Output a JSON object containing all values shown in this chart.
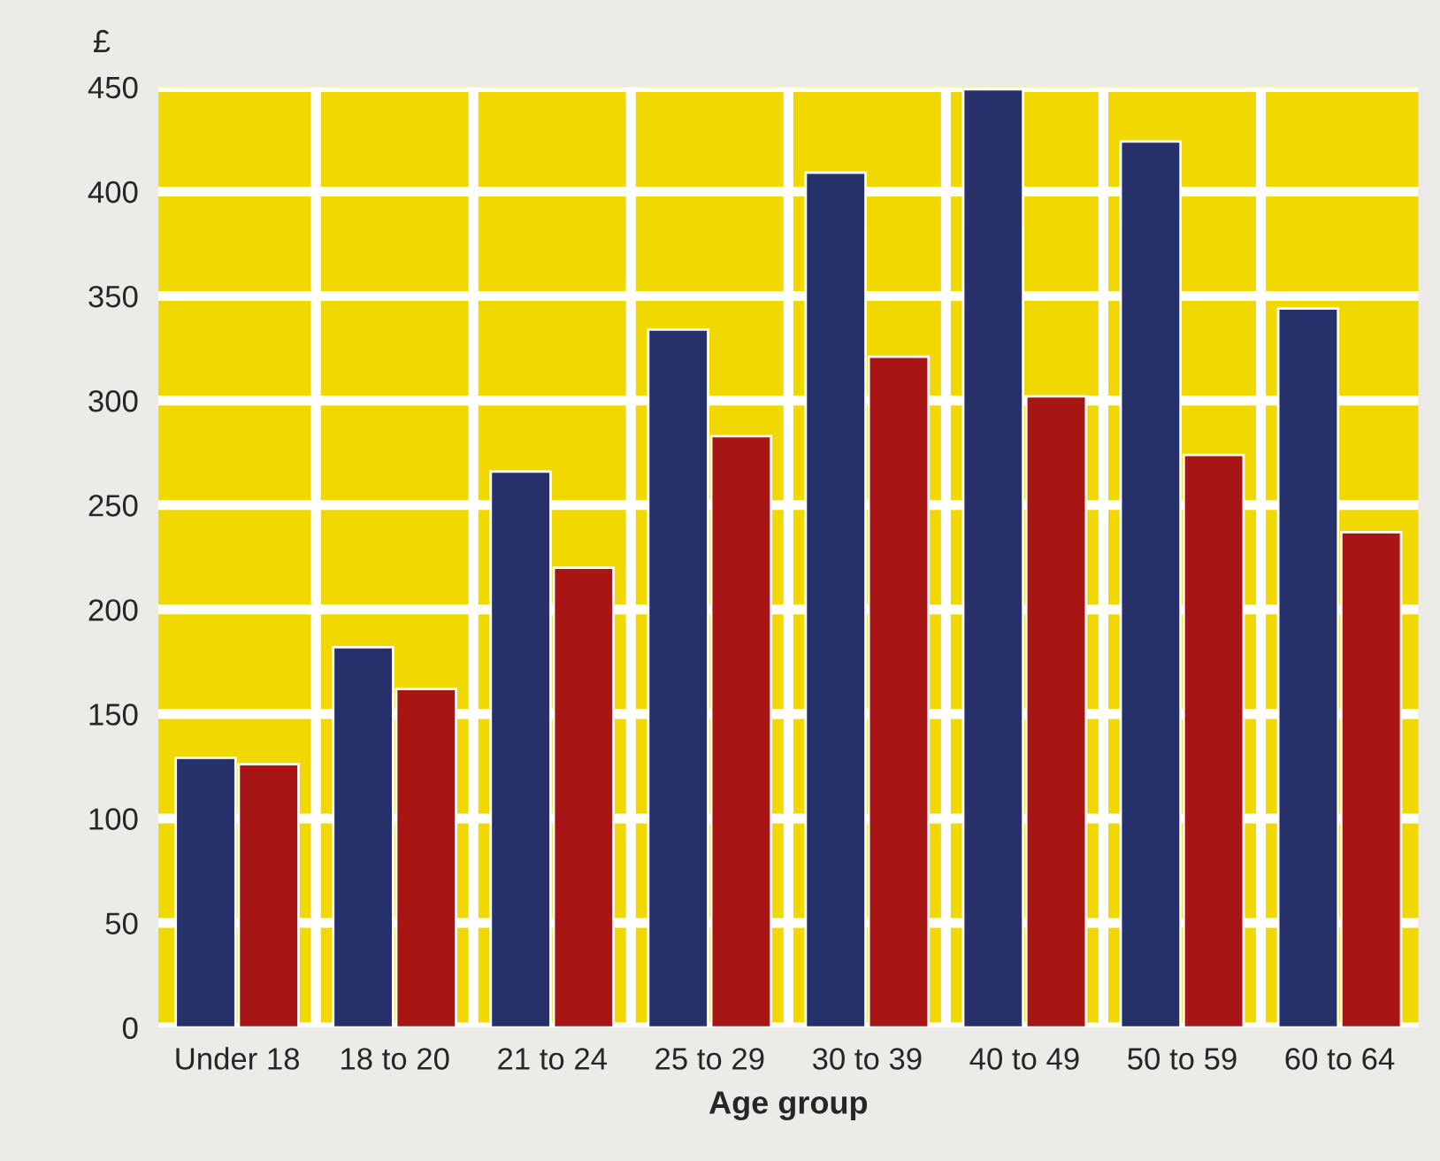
{
  "chart_data": {
    "type": "bar",
    "xlabel": "Age group",
    "ylabel": "£",
    "categories": [
      "Under 18",
      "18 to 20",
      "21 to 24",
      "25 to 29",
      "30 to 39",
      "40 to 49",
      "50 to 59",
      "60 to 64"
    ],
    "series": [
      {
        "color": "#26306a",
        "values": [
          129,
          182,
          266,
          334,
          409,
          449,
          424,
          344
        ]
      },
      {
        "color": "#a81515",
        "values": [
          126,
          162,
          220,
          283,
          321,
          302,
          274,
          237
        ]
      }
    ],
    "ylim": [
      0,
      450
    ],
    "yticks": [
      0,
      50,
      100,
      150,
      200,
      250,
      300,
      350,
      400,
      450
    ],
    "grid": true,
    "legend": false
  }
}
